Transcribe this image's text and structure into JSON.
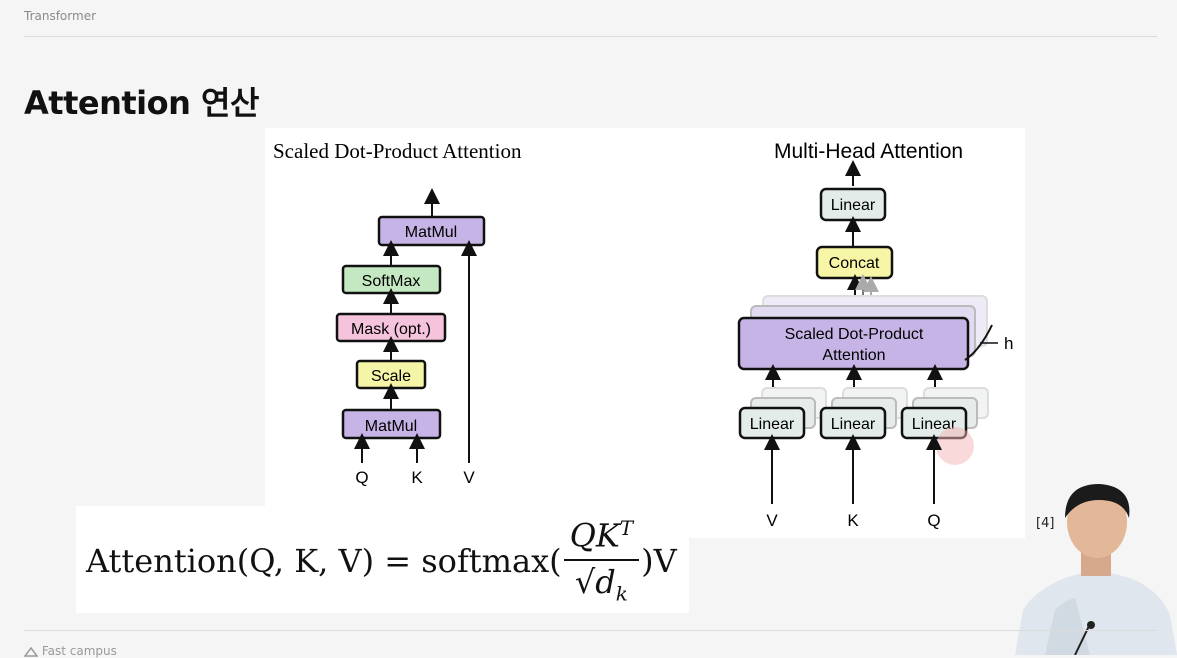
{
  "breadcrumb": "Transformer",
  "page_title": "Attention 연산",
  "left_diagram": {
    "title": "Scaled Dot-Product Attention",
    "blocks": [
      "MatMul",
      "SoftMax",
      "Mask (opt.)",
      "Scale",
      "MatMul"
    ],
    "inputs": [
      "Q",
      "K",
      "V"
    ]
  },
  "right_diagram": {
    "title": "Multi-Head Attention",
    "top_block": "Linear",
    "concat_block": "Concat",
    "attention_block_line1": "Scaled Dot-Product",
    "attention_block_line2": "Attention",
    "head_label": "h",
    "linear_blocks": [
      "Linear",
      "Linear",
      "Linear"
    ],
    "inputs": [
      "V",
      "K",
      "Q"
    ]
  },
  "formula": {
    "lhs": "Attention(Q, K, V) = softmax(",
    "numerator": "QK",
    "numerator_sup": "T",
    "denominator_prefix": "√d",
    "denominator_sub": "k",
    "rhs": ")V"
  },
  "citation": "[4]",
  "footer_brand": "Fast campus",
  "colors": {
    "matmul": "#c6b4e6",
    "softmax": "#c4e8c1",
    "mask": "#f5c4dc",
    "scale": "#f5f5a8",
    "linear": "#e3ece9",
    "concat": "#f7f5a6"
  }
}
